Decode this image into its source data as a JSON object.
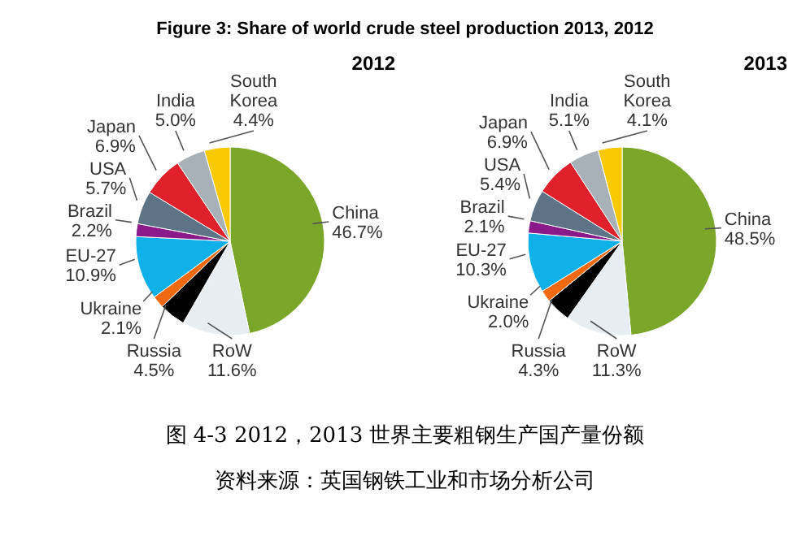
{
  "chart_data": [
    {
      "type": "pie",
      "title": "Figure 3: Share of world crude steel production 2013, 2012",
      "subtitle": "2012",
      "categories": [
        "China",
        "RoW",
        "Russia",
        "Ukraine",
        "EU-27",
        "Brazil",
        "USA",
        "Japan",
        "India",
        "South Korea"
      ],
      "values": [
        46.7,
        11.6,
        4.5,
        2.1,
        10.9,
        2.2,
        5.7,
        6.9,
        5.0,
        4.4
      ],
      "value_labels": [
        "46.7%",
        "11.6%",
        "4.5%",
        "2.1%",
        "10.9%",
        "2.2%",
        "5.7%",
        "6.9%",
        "5.0%",
        "4.4%"
      ],
      "colors": [
        "#7aa62a",
        "#e6eef4",
        "#000000",
        "#f26a10",
        "#10b0e8",
        "#8a1a8a",
        "#5c7486",
        "#e0202a",
        "#a8b0b8",
        "#f8c800"
      ],
      "legend": false
    },
    {
      "type": "pie",
      "subtitle": "2013",
      "categories": [
        "China",
        "RoW",
        "Russia",
        "Ukraine",
        "EU-27",
        "Brazil",
        "USA",
        "Japan",
        "India",
        "South Korea"
      ],
      "values": [
        48.5,
        11.3,
        4.3,
        2.0,
        10.3,
        2.1,
        5.4,
        6.9,
        5.1,
        4.1
      ],
      "value_labels": [
        "48.5%",
        "11.3%",
        "4.3%",
        "2.0%",
        "10.3%",
        "2.1%",
        "5.4%",
        "6.9%",
        "5.1%",
        "4.1%"
      ],
      "colors": [
        "#7aa62a",
        "#e6eef4",
        "#000000",
        "#f26a10",
        "#10b0e8",
        "#8a1a8a",
        "#5c7486",
        "#e0202a",
        "#a8b0b8",
        "#f8c800"
      ],
      "legend": false,
      "annotations": [
        "图 4-3 2012，2013 世界主要粗钢生产国产量份额",
        "资料来源：英国钢铁工业和市场分析公司"
      ]
    }
  ]
}
